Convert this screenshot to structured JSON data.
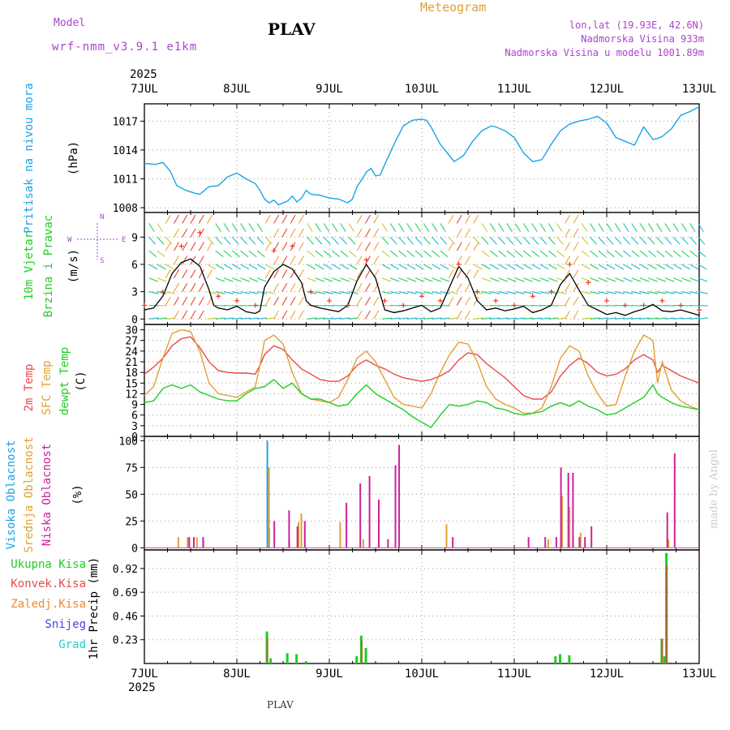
{
  "header": {
    "model_label": "Model",
    "model_name": "wrf-nmm_v3.9.1 e1km",
    "location": "PLAV",
    "chart_title": "Meteogram",
    "coords": "lon,lat (19.93E, 42.6N)",
    "elevation": "Nadmorska Visina 933m",
    "model_elevation": "Nadmorska Visina u modelu 1001.89m",
    "footer_location": "PLAV",
    "credit": "made by Angel"
  },
  "colors": {
    "pressure": "#1aa3e8",
    "wind_speed": "#000000",
    "wind_gust": "#e8392a",
    "temp_2m": "#e84a4a",
    "temp_sfc": "#e0a030",
    "dewpoint": "#22cc22",
    "cloud_high": "#1aa3e8",
    "cloud_mid": "#e0a030",
    "cloud_low": "#cc2299",
    "precip_total": "#22cc22",
    "precip_conv": "#e84a4a",
    "precip_frozen": "#f08830",
    "snow": "#4444ee",
    "hail": "#22cccc",
    "label_purple": "#aa44cc"
  },
  "chart_data": [
    {
      "type": "line",
      "id": "pressure",
      "ylabel": [
        "Pritisak na nivou mora",
        "(hPa)"
      ],
      "year": "2025",
      "x_ticks": [
        "7JUL",
        "8JUL",
        "9JUL",
        "10JUL",
        "11JUL",
        "12JUL",
        "13JUL"
      ],
      "ylim": [
        1007.5,
        1018.8
      ],
      "y_ticks": [
        1008,
        1011,
        1014,
        1017
      ],
      "grid": true,
      "series": [
        {
          "x": [
            0,
            0.12,
            0.2,
            0.28,
            0.35,
            0.45,
            0.55,
            0.6,
            0.7,
            0.8,
            0.9,
            1.0,
            1.1,
            1.2,
            1.25,
            1.3,
            1.35,
            1.4,
            1.45,
            1.55,
            1.6,
            1.65,
            1.7,
            1.75,
            1.8,
            1.9,
            2.0,
            2.1,
            2.2,
            2.25,
            2.3,
            2.35,
            2.4,
            2.45,
            2.5,
            2.55,
            2.6,
            2.7,
            2.8,
            2.9,
            3.0,
            3.05,
            3.1,
            3.2,
            3.3,
            3.35,
            3.45,
            3.55,
            3.65,
            3.75,
            3.8,
            3.9,
            4.0,
            4.1,
            4.2,
            4.3,
            4.4,
            4.5,
            4.6,
            4.7,
            4.8,
            4.9,
            5.0,
            5.1,
            5.2,
            5.3,
            5.4,
            5.5,
            5.55,
            5.6,
            5.7,
            5.8,
            5.9,
            6.0
          ],
          "y": [
            1012.6,
            1012.5,
            1012.7,
            1011.8,
            1010.3,
            1009.8,
            1009.5,
            1009.4,
            1010.2,
            1010.3,
            1011.2,
            1011.6,
            1011.0,
            1010.5,
            1009.8,
            1008.9,
            1008.5,
            1008.8,
            1008.3,
            1008.7,
            1009.2,
            1008.6,
            1009.0,
            1009.8,
            1009.4,
            1009.3,
            1009.0,
            1008.9,
            1008.5,
            1008.9,
            1010.2,
            1010.9,
            1011.7,
            1012.1,
            1011.3,
            1011.4,
            1012.5,
            1014.6,
            1016.5,
            1017.1,
            1017.2,
            1017.1,
            1016.4,
            1014.6,
            1013.4,
            1012.8,
            1013.4,
            1014.9,
            1016.0,
            1016.5,
            1016.4,
            1016.0,
            1015.3,
            1013.7,
            1012.8,
            1013.0,
            1014.6,
            1016.0,
            1016.7,
            1017.0,
            1017.2,
            1017.5,
            1016.8,
            1015.3,
            1014.9,
            1014.5,
            1016.4,
            1015.1,
            1015.2,
            1015.4,
            1016.2,
            1017.6,
            1018.0,
            1018.5
          ],
          "name": ""
        }
      ]
    },
    {
      "type": "line",
      "id": "wind",
      "ylabel": [
        "10m Vjetar",
        "Brzina i Pravac",
        "(m/s)"
      ],
      "compass": [
        "N",
        "W",
        "E",
        "S"
      ],
      "ylim": [
        -0.6,
        11.7
      ],
      "y_ticks": [
        0,
        3,
        6,
        9
      ],
      "grid": true,
      "series": [
        {
          "name": "wind speed",
          "x": [
            0,
            0.1,
            0.2,
            0.3,
            0.4,
            0.5,
            0.6,
            0.7,
            0.75,
            0.8,
            0.9,
            1.0,
            1.1,
            1.2,
            1.25,
            1.3,
            1.4,
            1.5,
            1.6,
            1.7,
            1.75,
            1.8,
            1.9,
            2.0,
            2.1,
            2.2,
            2.3,
            2.4,
            2.5,
            2.6,
            2.7,
            2.8,
            2.9,
            3.0,
            3.1,
            3.2,
            3.3,
            3.4,
            3.5,
            3.6,
            3.7,
            3.8,
            3.9,
            4.0,
            4.1,
            4.2,
            4.3,
            4.4,
            4.5,
            4.6,
            4.7,
            4.8,
            4.9,
            5.0,
            5.1,
            5.2,
            5.3,
            5.4,
            5.5,
            5.6,
            5.7,
            5.8,
            5.9,
            6.0
          ],
          "y": [
            1.0,
            1.2,
            2.5,
            5.0,
            6.2,
            6.6,
            5.8,
            3.2,
            1.5,
            1.2,
            1.0,
            1.4,
            0.8,
            0.6,
            0.9,
            3.5,
            5.2,
            6.0,
            5.5,
            4.0,
            2.0,
            1.5,
            1.2,
            1.0,
            0.8,
            1.5,
            4.2,
            6.0,
            4.5,
            1.0,
            0.7,
            0.9,
            1.2,
            1.5,
            0.8,
            1.2,
            3.5,
            5.8,
            4.5,
            2.0,
            1.0,
            1.2,
            0.9,
            1.1,
            1.4,
            0.7,
            1.0,
            1.5,
            3.8,
            5.0,
            3.2,
            1.5,
            1.0,
            0.5,
            0.7,
            0.4,
            0.8,
            1.1,
            1.6,
            0.9,
            0.8,
            1.0,
            0.7,
            0.4
          ]
        },
        {
          "name": "wind gust",
          "x": [
            0,
            0.2,
            0.4,
            0.6,
            0.8,
            1.0,
            1.2,
            1.4,
            1.6,
            1.8,
            2.0,
            2.2,
            2.4,
            2.6,
            2.8,
            3.0,
            3.2,
            3.4,
            3.6,
            3.8,
            4.0,
            4.2,
            4.4,
            4.6,
            4.8,
            5.0,
            5.2,
            5.4,
            5.6,
            5.8,
            6.0
          ],
          "y": [
            1.5,
            3.0,
            8.0,
            9.5,
            2.5,
            2.0,
            1.5,
            7.5,
            8.0,
            3.0,
            2.0,
            1.5,
            6.5,
            2.0,
            1.5,
            2.5,
            2.0,
            6.0,
            3.0,
            2.0,
            1.5,
            2.5,
            3.0,
            6.0,
            4.0,
            2.0,
            1.5,
            1.5,
            2.0,
            1.5,
            1.0
          ]
        }
      ]
    },
    {
      "type": "line",
      "id": "temperature",
      "ylabel": [
        "2m Temp",
        "SFC Temp",
        "dewpt Temp",
        "(C)"
      ],
      "ylim": [
        0,
        31.5
      ],
      "y_ticks": [
        0,
        3,
        6,
        9,
        12,
        15,
        18,
        21,
        24,
        27,
        30
      ],
      "grid": true,
      "series": [
        {
          "name": "2m Temp",
          "x": [
            0,
            0.1,
            0.2,
            0.3,
            0.4,
            0.5,
            0.6,
            0.7,
            0.8,
            0.9,
            1.0,
            1.1,
            1.2,
            1.25,
            1.3,
            1.4,
            1.5,
            1.6,
            1.7,
            1.8,
            1.9,
            2.0,
            2.1,
            2.2,
            2.3,
            2.4,
            2.5,
            2.6,
            2.7,
            2.8,
            2.9,
            3.0,
            3.1,
            3.2,
            3.3,
            3.4,
            3.5,
            3.6,
            3.7,
            3.8,
            3.9,
            4.0,
            4.1,
            4.2,
            4.3,
            4.4,
            4.5,
            4.6,
            4.7,
            4.8,
            4.9,
            5.0,
            5.1,
            5.2,
            5.3,
            5.4,
            5.5,
            5.55,
            5.6,
            5.7,
            5.8,
            5.9,
            6.0
          ],
          "y": [
            17.5,
            19.5,
            22.0,
            25.5,
            27.5,
            28.0,
            25.0,
            21.0,
            18.5,
            18.0,
            17.8,
            17.8,
            17.5,
            20.0,
            23.0,
            25.5,
            24.5,
            21.5,
            19.0,
            17.5,
            16.0,
            15.5,
            15.5,
            17.0,
            20.0,
            21.5,
            20.0,
            19.0,
            17.5,
            16.5,
            16.0,
            15.5,
            16.0,
            17.0,
            18.5,
            21.5,
            23.5,
            23.0,
            20.5,
            18.5,
            16.5,
            14.0,
            11.5,
            10.5,
            10.5,
            12.5,
            17.0,
            20.0,
            22.0,
            20.5,
            18.0,
            17.0,
            17.5,
            19.0,
            21.5,
            23.0,
            21.5,
            18.0,
            20.0,
            18.5,
            17.0,
            16.0,
            15.0
          ]
        },
        {
          "name": "SFC Temp",
          "x": [
            0,
            0.1,
            0.2,
            0.3,
            0.4,
            0.5,
            0.6,
            0.7,
            0.8,
            0.9,
            1.0,
            1.1,
            1.2,
            1.25,
            1.3,
            1.4,
            1.5,
            1.6,
            1.7,
            1.8,
            1.9,
            2.0,
            2.1,
            2.2,
            2.3,
            2.4,
            2.5,
            2.6,
            2.7,
            2.8,
            2.9,
            3.0,
            3.1,
            3.2,
            3.3,
            3.4,
            3.5,
            3.6,
            3.7,
            3.8,
            3.9,
            4.0,
            4.1,
            4.2,
            4.3,
            4.4,
            4.5,
            4.6,
            4.7,
            4.8,
            4.9,
            5.0,
            5.1,
            5.2,
            5.3,
            5.4,
            5.5,
            5.55,
            5.6,
            5.7,
            5.8,
            5.9,
            6.0
          ],
          "y": [
            11.5,
            14.0,
            22.0,
            29.0,
            30.0,
            29.5,
            24.0,
            15.0,
            12.0,
            11.5,
            11.0,
            12.5,
            14.0,
            20.0,
            27.0,
            28.5,
            26.0,
            18.0,
            12.0,
            10.5,
            10.0,
            9.5,
            11.0,
            16.0,
            22.0,
            24.0,
            21.0,
            16.0,
            11.0,
            9.0,
            8.5,
            8.0,
            12.0,
            18.0,
            23.0,
            26.5,
            26.0,
            21.0,
            14.0,
            10.5,
            9.0,
            8.0,
            6.5,
            6.5,
            8.0,
            14.0,
            22.0,
            25.5,
            24.0,
            17.0,
            12.0,
            8.5,
            9.0,
            17.0,
            24.0,
            28.5,
            27.0,
            15.0,
            21.0,
            13.0,
            10.0,
            8.5,
            7.5
          ]
        },
        {
          "name": "dewpt Temp",
          "x": [
            0,
            0.1,
            0.2,
            0.3,
            0.4,
            0.5,
            0.6,
            0.7,
            0.8,
            0.9,
            1.0,
            1.1,
            1.2,
            1.3,
            1.4,
            1.5,
            1.6,
            1.7,
            1.8,
            1.9,
            2.0,
            2.1,
            2.2,
            2.3,
            2.4,
            2.5,
            2.6,
            2.7,
            2.8,
            2.9,
            3.0,
            3.1,
            3.2,
            3.3,
            3.4,
            3.5,
            3.6,
            3.7,
            3.8,
            3.9,
            4.0,
            4.1,
            4.2,
            4.3,
            4.4,
            4.5,
            4.6,
            4.7,
            4.8,
            4.9,
            5.0,
            5.1,
            5.2,
            5.3,
            5.4,
            5.5,
            5.55,
            5.6,
            5.7,
            5.8,
            5.9,
            6.0
          ],
          "y": [
            9.5,
            10.0,
            13.5,
            14.5,
            13.5,
            14.5,
            12.5,
            11.5,
            10.5,
            10.0,
            10.0,
            12.0,
            13.5,
            14.0,
            16.0,
            13.5,
            15.0,
            12.0,
            10.5,
            10.5,
            9.5,
            8.5,
            9.0,
            12.0,
            14.5,
            12.0,
            10.5,
            9.0,
            7.5,
            5.5,
            4.0,
            2.5,
            6.0,
            9.0,
            8.5,
            9.0,
            10.0,
            9.5,
            8.0,
            7.5,
            6.5,
            6.0,
            6.5,
            7.0,
            8.5,
            9.5,
            8.5,
            10.0,
            8.5,
            7.5,
            6.0,
            6.5,
            8.0,
            9.5,
            11.0,
            14.5,
            12.0,
            11.0,
            9.5,
            8.5,
            8.0,
            7.5
          ]
        }
      ]
    },
    {
      "type": "bar",
      "id": "clouds",
      "ylabel": [
        "Visoka Oblacnost",
        "Srednja Oblacnost",
        "Niska Oblacnost",
        "(%)"
      ],
      "ylim": [
        -2,
        104
      ],
      "y_ticks": [
        0,
        25,
        50,
        75,
        100
      ],
      "grid": true,
      "series": [
        {
          "name": "Visoka Oblacnost",
          "x": [
            1.33,
            1.35
          ],
          "values": [
            100,
            18
          ]
        },
        {
          "name": "Srednja Oblacnost",
          "x": [
            0.35,
            0.45,
            0.55,
            0.62,
            1.33,
            1.55,
            1.65,
            1.68,
            2.1,
            2.35,
            3.25,
            4.35,
            4.5,
            4.58,
            4.62,
            4.7,
            5.65
          ],
          "values": [
            10,
            10,
            10,
            7,
            75,
            8,
            24,
            32,
            24,
            8,
            22,
            8,
            48,
            38,
            10,
            14,
            8
          ]
        },
        {
          "name": "Niska Oblacnost",
          "x": [
            0.45,
            0.5,
            0.6,
            1.37,
            1.53,
            1.62,
            1.7,
            2.15,
            2.3,
            2.4,
            2.5,
            2.6,
            2.68,
            2.72,
            3.3,
            4.12,
            4.3,
            4.42,
            4.47,
            4.55,
            4.6,
            4.67,
            4.73,
            4.8,
            5.62,
            5.7
          ],
          "values": [
            10,
            10,
            10,
            25,
            35,
            20,
            25,
            42,
            60,
            67,
            45,
            8,
            77,
            96,
            10,
            10,
            10,
            10,
            75,
            70,
            70,
            10,
            10,
            20,
            33,
            88
          ]
        }
      ]
    },
    {
      "type": "bar",
      "id": "precip",
      "ylabel": [
        "1hr Precip (mm)"
      ],
      "legend": [
        "Ukupna Kisa",
        "Konvek.Kisa",
        "Zaledj.Kisa",
        "Snijeg",
        "Grad"
      ],
      "ylim": [
        0,
        1.1
      ],
      "y_ticks": [
        0.23,
        0.46,
        0.69,
        0.92
      ],
      "grid": true,
      "series": [
        {
          "name": "Ukupna Kisa",
          "x": [
            1.33,
            1.37,
            1.55,
            1.65,
            1.75,
            2.3,
            2.35,
            2.4,
            4.45,
            4.5,
            4.6,
            5.6,
            5.63,
            5.65
          ],
          "values": [
            0.31,
            0.05,
            0.1,
            0.09,
            0.02,
            0.07,
            0.27,
            0.15,
            0.07,
            0.09,
            0.08,
            0.24,
            0.07,
            1.07
          ]
        },
        {
          "name": "Konvek.Kisa",
          "x": [
            1.33,
            2.35,
            5.6,
            5.65
          ],
          "values": [
            0.25,
            0.22,
            0.24,
            0.95
          ]
        }
      ],
      "x_ticks": [
        "7JUL",
        "8JUL",
        "9JUL",
        "10JUL",
        "11JUL",
        "12JUL",
        "13JUL"
      ],
      "year": "2025"
    }
  ]
}
